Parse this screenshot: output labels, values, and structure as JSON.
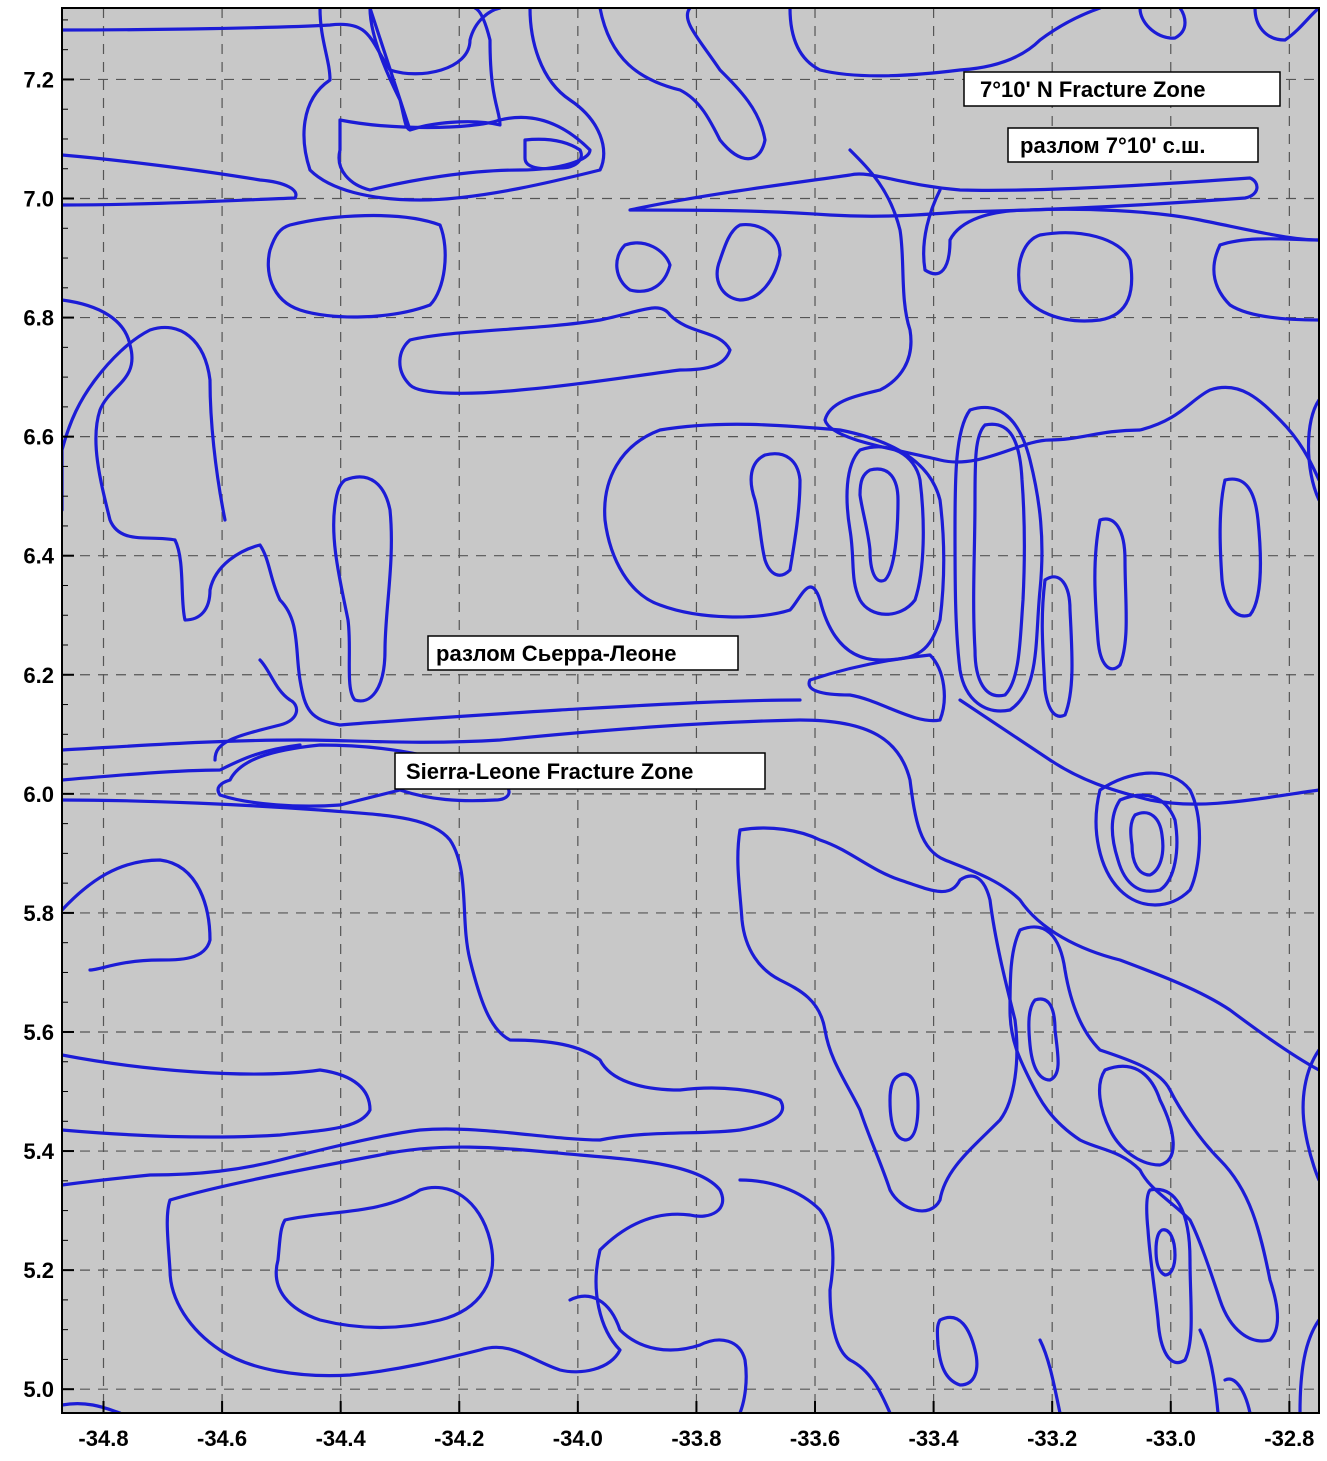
{
  "map": {
    "background_color": "#c8c8c8",
    "contour_color": "#1c1cd6",
    "x_ticks": [
      "-34.8",
      "-34.6",
      "-34.4",
      "-34.2",
      "-34.0",
      "-33.8",
      "-33.6",
      "-33.4",
      "-33.2",
      "-33.0",
      "-32.8"
    ],
    "y_ticks": [
      "7.2",
      "7.0",
      "6.8",
      "6.6",
      "6.4",
      "6.2",
      "6.0",
      "5.8",
      "5.6",
      "5.4",
      "5.2",
      "5.0"
    ],
    "x_range": [
      -34.87,
      -32.75
    ],
    "y_range": [
      4.96,
      7.32
    ]
  },
  "labels": {
    "fz_7_10_en": "7°10' N Fracture Zone",
    "fz_7_10_ru": "разлом 7°10' с.ш.",
    "sierra_leone_ru": "разлом Сьерра-Леоне",
    "sierra_leone_en": "Sierra-Leone Fracture Zone"
  }
}
